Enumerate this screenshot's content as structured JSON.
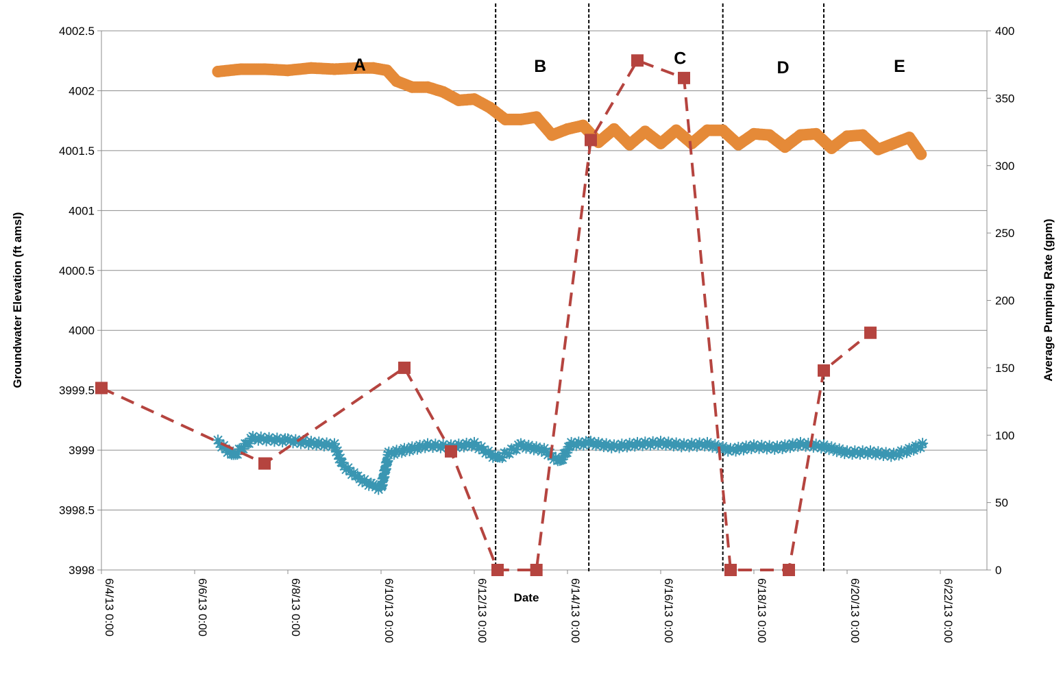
{
  "chart_data": {
    "type": "line",
    "xlabel": "Date",
    "ylabel_left": "Groundwater Elevation (ft amsl)",
    "ylabel_right": "Average Pumping Rate (gpm)",
    "x_range": [
      "6/4/13 0:00",
      "6/23/13 0:00"
    ],
    "x_ticks": [
      "6/4/13 0:00",
      "6/6/13 0:00",
      "6/8/13 0:00",
      "6/10/13 0:00",
      "6/12/13 0:00",
      "6/14/13 0:00",
      "6/16/13 0:00",
      "6/18/13 0:00",
      "6/20/13 0:00",
      "6/22/13 0:00"
    ],
    "y_left": {
      "range": [
        3998,
        4002.5
      ],
      "ticks": [
        "3998",
        "3998.5",
        "3999",
        "3999.5",
        "4000",
        "4000.5",
        "4001",
        "4001.5",
        "4002",
        "4002.5"
      ]
    },
    "y_right": {
      "range": [
        0,
        400
      ],
      "ticks": [
        "0",
        "50",
        "100",
        "150",
        "200",
        "250",
        "300",
        "350",
        "400"
      ]
    },
    "grid": "horizontal",
    "legend": "none",
    "period_boundaries": [
      "6/12/13 11:00",
      "6/14/13 11:00",
      "6/17/13 8:00",
      "6/19/13 12:00"
    ],
    "period_labels": [
      {
        "label": "A",
        "x": "6/9/13 13:00",
        "y_right": 375
      },
      {
        "label": "B",
        "x": "6/13/13 10:00",
        "y_right": 374
      },
      {
        "label": "C",
        "x": "6/16/13 10:00",
        "y_right": 380
      },
      {
        "label": "D",
        "x": "6/18/13 15:00",
        "y_right": 373
      },
      {
        "label": "E",
        "x": "6/21/13 3:00",
        "y_right": 374
      }
    ],
    "series": [
      {
        "axis": "left",
        "color": "#e58a38",
        "marker": "circle",
        "line": "none",
        "points": [
          [
            "6/6/13 12:00",
            4002.16
          ],
          [
            "6/7/13 0:00",
            4002.18
          ],
          [
            "6/7/13 12:00",
            4002.18
          ],
          [
            "6/8/13 0:00",
            4002.17
          ],
          [
            "6/8/13 12:00",
            4002.19
          ],
          [
            "6/9/13 0:00",
            4002.18
          ],
          [
            "6/9/13 12:00",
            4002.19
          ],
          [
            "6/9/13 20:00",
            4002.19
          ],
          [
            "6/10/13 3:00",
            4002.17
          ],
          [
            "6/10/13 8:00",
            4002.08
          ],
          [
            "6/10/13 16:00",
            4002.03
          ],
          [
            "6/11/13 0:00",
            4002.03
          ],
          [
            "6/11/13 8:00",
            4001.99
          ],
          [
            "6/11/13 16:00",
            4001.92
          ],
          [
            "6/12/13 0:00",
            4001.93
          ],
          [
            "6/12/13 8:00",
            4001.86
          ],
          [
            "6/12/13 16:00",
            4001.76
          ],
          [
            "6/13/13 0:00",
            4001.76
          ],
          [
            "6/13/13 8:00",
            4001.78
          ],
          [
            "6/13/13 16:00",
            4001.63
          ],
          [
            "6/14/13 0:00",
            4001.68
          ],
          [
            "6/14/13 8:00",
            4001.71
          ],
          [
            "6/14/13 16:00",
            4001.57
          ],
          [
            "6/15/13 0:00",
            4001.68
          ],
          [
            "6/15/13 8:00",
            4001.55
          ],
          [
            "6/15/13 16:00",
            4001.66
          ],
          [
            "6/16/13 0:00",
            4001.56
          ],
          [
            "6/16/13 8:00",
            4001.67
          ],
          [
            "6/16/13 16:00",
            4001.56
          ],
          [
            "6/17/13 0:00",
            4001.67
          ],
          [
            "6/17/13 8:00",
            4001.67
          ],
          [
            "6/17/13 16:00",
            4001.55
          ],
          [
            "6/18/13 0:00",
            4001.64
          ],
          [
            "6/18/13 8:00",
            4001.63
          ],
          [
            "6/18/13 16:00",
            4001.53
          ],
          [
            "6/19/13 0:00",
            4001.63
          ],
          [
            "6/19/13 8:00",
            4001.64
          ],
          [
            "6/19/13 16:00",
            4001.52
          ],
          [
            "6/20/13 0:00",
            4001.62
          ],
          [
            "6/20/13 8:00",
            4001.63
          ],
          [
            "6/20/13 16:00",
            4001.51
          ],
          [
            "6/21/13 0:00",
            4001.56
          ],
          [
            "6/21/13 8:00",
            4001.61
          ],
          [
            "6/21/13 14:00",
            4001.47
          ]
        ]
      },
      {
        "axis": "left",
        "color": "#3a96b2",
        "marker": "star",
        "line": "none",
        "points": [
          [
            "6/6/13 12:00",
            3999.07
          ],
          [
            "6/6/13 20:00",
            3998.95
          ],
          [
            "6/7/13 6:00",
            3999.1
          ],
          [
            "6/8/13 0:00",
            3999.08
          ],
          [
            "6/8/13 12:00",
            3999.06
          ],
          [
            "6/9/13 0:00",
            3999.04
          ],
          [
            "6/9/13 4:00",
            3998.88
          ],
          [
            "6/9/13 12:00",
            3998.77
          ],
          [
            "6/9/13 20:00",
            3998.7
          ],
          [
            "6/10/13 0:00",
            3998.68
          ],
          [
            "6/10/13 4:00",
            3998.97
          ],
          [
            "6/10/13 12:00",
            3999.0
          ],
          [
            "6/11/13 0:00",
            3999.04
          ],
          [
            "6/11/13 12:00",
            3999.03
          ],
          [
            "6/12/13 0:00",
            3999.05
          ],
          [
            "6/12/13 12:00",
            3998.93
          ],
          [
            "6/13/13 0:00",
            3999.04
          ],
          [
            "6/13/13 12:00",
            3999.0
          ],
          [
            "6/13/13 20:00",
            3998.9
          ],
          [
            "6/14/13 2:00",
            3999.05
          ],
          [
            "6/14/13 12:00",
            3999.06
          ],
          [
            "6/15/13 0:00",
            3999.03
          ],
          [
            "6/15/13 12:00",
            3999.05
          ],
          [
            "6/16/13 0:00",
            3999.06
          ],
          [
            "6/16/13 12:00",
            3999.04
          ],
          [
            "6/17/13 0:00",
            3999.05
          ],
          [
            "6/17/13 12:00",
            3999.0
          ],
          [
            "6/18/13 0:00",
            3999.03
          ],
          [
            "6/18/13 12:00",
            3999.02
          ],
          [
            "6/19/13 0:00",
            3999.05
          ],
          [
            "6/19/13 12:00",
            3999.03
          ],
          [
            "6/20/13 0:00",
            3998.98
          ],
          [
            "6/20/13 12:00",
            3998.98
          ],
          [
            "6/21/13 0:00",
            3998.96
          ],
          [
            "6/21/13 8:00",
            3999.0
          ],
          [
            "6/21/13 16:00",
            3999.05
          ]
        ]
      },
      {
        "axis": "right",
        "color": "#b5443f",
        "marker": "square",
        "line": "dashed",
        "points": [
          [
            "6/4/13 0:00",
            135
          ],
          [
            "6/7/13 12:00",
            79
          ],
          [
            "6/10/13 12:00",
            150
          ],
          [
            "6/11/13 12:00",
            88
          ],
          [
            "6/12/13 12:00",
            0
          ],
          [
            "6/13/13 8:00",
            0
          ],
          [
            "6/14/13 12:00",
            319
          ],
          [
            "6/15/13 12:00",
            378
          ],
          [
            "6/16/13 12:00",
            365
          ],
          [
            "6/17/13 12:00",
            0
          ],
          [
            "6/18/13 18:00",
            0
          ],
          [
            "6/19/13 12:00",
            148
          ],
          [
            "6/20/13 12:00",
            176
          ]
        ]
      }
    ]
  }
}
